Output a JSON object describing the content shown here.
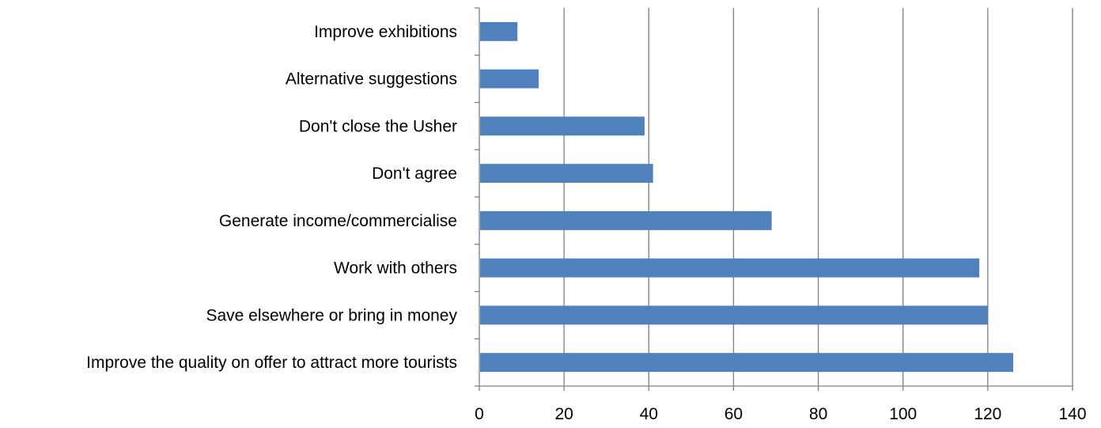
{
  "chart_data": {
    "type": "bar",
    "orientation": "horizontal",
    "categories": [
      "Improve exhibitions",
      "Alternative suggestions",
      "Don't close the Usher",
      "Don't agree",
      "Generate income/commercialise",
      "Work with others",
      "Save elsewhere or bring in money",
      "Improve the quality on offer to attract more tourists"
    ],
    "values": [
      9,
      14,
      39,
      41,
      69,
      118,
      120,
      126
    ],
    "xlim": [
      0,
      140
    ],
    "xticks": [
      "0",
      "20",
      "40",
      "60",
      "80",
      "100",
      "120",
      "140"
    ],
    "grid": "vertical major gridlines",
    "legend": "none",
    "colors": {
      "bar": "#4f81bd",
      "grid": "#7f7f7f",
      "axis": "#7f7f7f"
    }
  }
}
